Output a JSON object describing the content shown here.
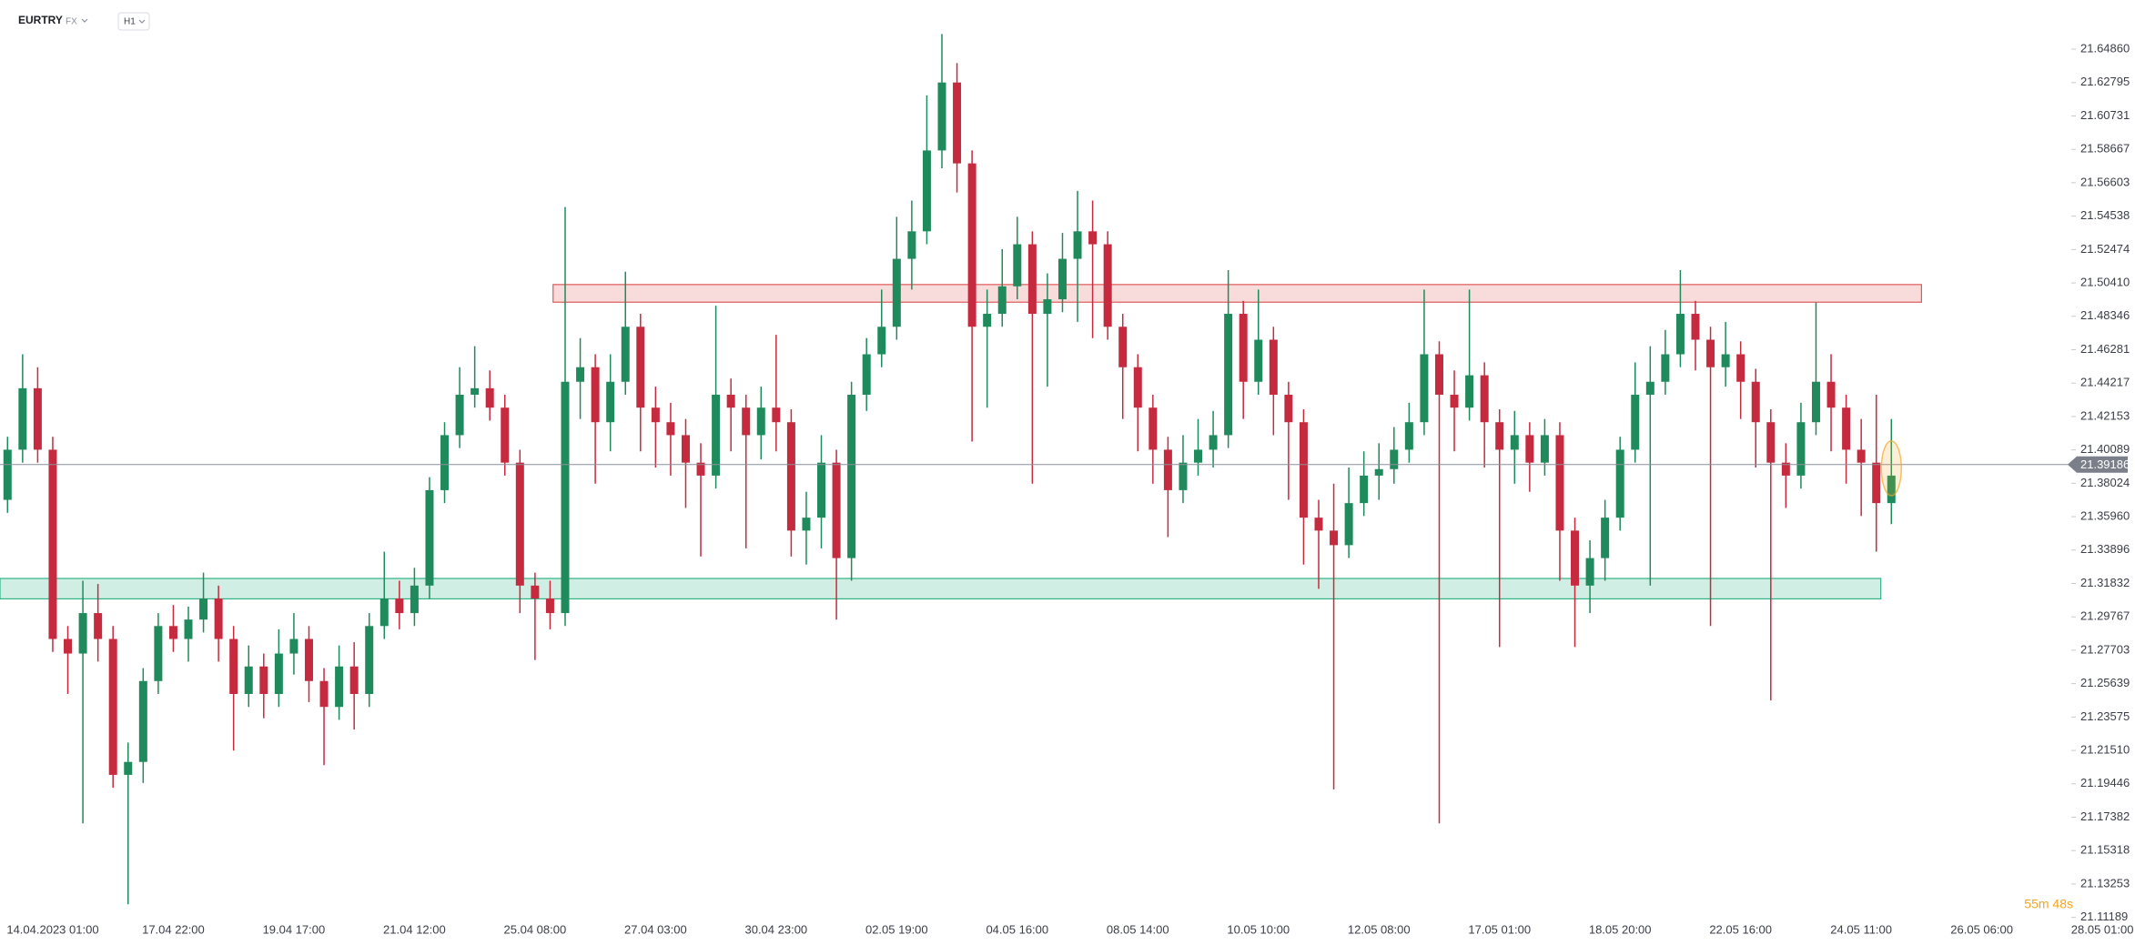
{
  "chart_data": {
    "type": "candlestick",
    "symbol": "EURTRY",
    "market": "FX",
    "timeframe": "H1",
    "countdown": "55m 48s",
    "up_color": "#1f8a5b",
    "down_color": "#c62a3f",
    "current_price": 21.39186,
    "categories": [
      null,
      null,
      null,
      "14.04.2023 01:00",
      null,
      null,
      null,
      null,
      null,
      null,
      null,
      "17.04 22:00",
      null,
      null,
      null,
      null,
      null,
      null,
      null,
      "19.04 17:00",
      null,
      null,
      null,
      null,
      null,
      null,
      null,
      "21.04 12:00",
      null,
      null,
      null,
      null,
      null,
      null,
      null,
      "25.04 08:00",
      null,
      null,
      null,
      null,
      null,
      null,
      null,
      "27.04 03:00",
      null,
      null,
      null,
      null,
      null,
      null,
      null,
      "30.04 23:00",
      null,
      null,
      null,
      null,
      null,
      null,
      null,
      "02.05 19:00",
      null,
      null,
      null,
      null,
      null,
      null,
      null,
      "04.05 16:00",
      null,
      null,
      null,
      null,
      null,
      null,
      null,
      "08.05 14:00",
      null,
      null,
      null,
      null,
      null,
      null,
      null,
      "10.05 10:00",
      null,
      null,
      null,
      null,
      null,
      null,
      null,
      "12.05 08:00",
      null,
      null,
      null,
      null,
      null,
      null,
      null,
      "17.05 01:00",
      null,
      null,
      null,
      null,
      null,
      null,
      null,
      "18.05 20:00",
      null,
      null,
      null,
      null,
      null,
      null,
      null,
      "22.05 16:00",
      null,
      null,
      null,
      null,
      null,
      null,
      null,
      "24.05 11:00",
      null,
      null,
      null,
      null,
      null,
      null,
      null,
      "26.05 06:00",
      null,
      null,
      null,
      null,
      null,
      null,
      null,
      "28.05 01:00"
    ],
    "open": [
      21.37,
      21.401,
      21.439,
      21.401,
      21.284,
      21.275,
      21.3,
      21.284,
      21.2,
      21.208,
      21.258,
      21.292,
      21.284,
      21.296,
      21.309,
      21.284,
      21.25,
      21.267,
      21.25,
      21.275,
      21.284,
      21.258,
      21.242,
      21.267,
      21.25,
      21.292,
      21.309,
      21.3,
      21.317,
      21.376,
      21.41,
      21.435,
      21.439,
      21.427,
      21.393,
      21.317,
      21.309,
      21.3,
      21.443,
      21.452,
      21.418,
      21.443,
      21.477,
      21.427,
      21.418,
      21.41,
      21.393,
      21.385,
      21.435,
      21.427,
      21.41,
      21.427,
      21.418,
      21.351,
      21.359,
      21.393,
      21.334,
      21.435,
      21.46,
      21.477,
      21.519,
      21.536,
      21.586,
      21.628,
      21.578,
      21.477,
      21.485,
      21.502,
      21.528,
      21.485,
      21.494,
      21.519,
      21.536,
      21.528,
      21.477,
      21.452,
      21.427,
      21.401,
      21.376,
      21.393,
      21.401,
      21.41,
      21.485,
      21.443,
      21.469,
      21.435,
      21.418,
      21.359,
      21.351,
      21.342,
      21.368,
      21.385,
      21.389,
      21.401,
      21.418,
      21.46,
      21.435,
      21.427,
      21.447,
      21.418,
      21.401,
      21.41,
      21.393,
      21.41,
      21.351,
      21.317,
      21.334,
      21.359,
      21.401,
      21.435,
      21.443,
      21.46,
      21.485,
      21.469,
      21.452,
      21.46,
      21.443,
      21.418,
      21.393,
      21.385,
      21.418,
      21.443,
      21.427,
      21.401,
      21.393,
      21.368,
      null,
      null,
      null,
      null,
      null,
      null,
      null,
      null,
      null,
      null,
      null,
      null,
      null,
      null
    ],
    "high": [
      21.409,
      21.46,
      21.452,
      21.409,
      21.292,
      21.32,
      21.318,
      21.292,
      21.22,
      21.266,
      21.3,
      21.305,
      21.304,
      21.325,
      21.317,
      21.292,
      21.28,
      21.275,
      21.29,
      21.3,
      21.292,
      21.266,
      21.28,
      21.282,
      21.3,
      21.338,
      21.32,
      21.328,
      21.384,
      21.418,
      21.452,
      21.465,
      21.45,
      21.435,
      21.401,
      21.325,
      21.32,
      21.551,
      21.47,
      21.46,
      21.46,
      21.511,
      21.485,
      21.44,
      21.43,
      21.42,
      21.405,
      21.49,
      21.445,
      21.435,
      21.44,
      21.472,
      21.426,
      21.375,
      21.41,
      21.401,
      21.443,
      21.47,
      21.5,
      21.545,
      21.555,
      21.62,
      21.658,
      21.64,
      21.586,
      21.5,
      21.525,
      21.545,
      21.536,
      21.51,
      21.535,
      21.561,
      21.555,
      21.536,
      21.485,
      21.46,
      21.435,
      21.409,
      21.41,
      21.42,
      21.425,
      21.512,
      21.493,
      21.5,
      21.477,
      21.443,
      21.426,
      21.37,
      21.38,
      21.39,
      21.4,
      21.405,
      21.415,
      21.43,
      21.5,
      21.468,
      21.45,
      21.5,
      21.455,
      21.426,
      21.425,
      21.418,
      21.42,
      21.418,
      21.359,
      21.345,
      21.37,
      21.409,
      21.455,
      21.465,
      21.475,
      21.512,
      21.493,
      21.477,
      21.48,
      21.468,
      21.451,
      21.426,
      21.405,
      21.43,
      21.492,
      21.46,
      21.435,
      21.42,
      21.435,
      21.42,
      null,
      null,
      null,
      null,
      null,
      null,
      null,
      null,
      null,
      null,
      null,
      null,
      null,
      null
    ],
    "low": [
      21.362,
      21.393,
      21.393,
      21.276,
      21.25,
      21.17,
      21.27,
      21.192,
      21.12,
      21.195,
      21.25,
      21.276,
      21.27,
      21.288,
      21.27,
      21.215,
      21.242,
      21.235,
      21.242,
      21.262,
      21.245,
      21.206,
      21.234,
      21.228,
      21.242,
      21.284,
      21.29,
      21.292,
      21.309,
      21.368,
      21.402,
      21.427,
      21.419,
      21.385,
      21.3,
      21.271,
      21.29,
      21.292,
      21.42,
      21.38,
      21.4,
      21.435,
      21.4,
      21.39,
      21.385,
      21.365,
      21.335,
      21.377,
      21.4,
      21.34,
      21.395,
      21.4,
      21.335,
      21.33,
      21.34,
      21.296,
      21.32,
      21.425,
      21.452,
      21.469,
      21.5,
      21.528,
      21.575,
      21.56,
      21.406,
      21.427,
      21.477,
      21.494,
      21.38,
      21.44,
      21.486,
      21.48,
      21.47,
      21.469,
      21.42,
      21.4,
      21.38,
      21.347,
      21.368,
      21.385,
      21.39,
      21.402,
      21.42,
      21.435,
      21.41,
      21.37,
      21.33,
      21.315,
      21.191,
      21.334,
      21.36,
      21.37,
      21.38,
      21.393,
      21.41,
      21.17,
      21.4,
      21.419,
      21.39,
      21.279,
      21.38,
      21.375,
      21.385,
      21.32,
      21.279,
      21.3,
      21.32,
      21.351,
      21.393,
      21.317,
      21.435,
      21.452,
      21.45,
      21.292,
      21.44,
      21.42,
      21.39,
      21.246,
      21.365,
      21.377,
      21.41,
      21.4,
      21.38,
      21.36,
      21.338,
      21.355,
      null,
      null,
      null,
      null,
      null,
      null,
      null,
      null,
      null,
      null,
      null,
      null,
      null,
      null
    ],
    "close": [
      21.401,
      21.439,
      21.401,
      21.284,
      21.275,
      21.3,
      21.284,
      21.2,
      21.208,
      21.258,
      21.292,
      21.284,
      21.296,
      21.309,
      21.284,
      21.25,
      21.267,
      21.25,
      21.275,
      21.284,
      21.258,
      21.242,
      21.267,
      21.25,
      21.292,
      21.309,
      21.3,
      21.317,
      21.376,
      21.41,
      21.435,
      21.439,
      21.427,
      21.393,
      21.317,
      21.309,
      21.3,
      21.443,
      21.452,
      21.418,
      21.443,
      21.477,
      21.427,
      21.418,
      21.41,
      21.393,
      21.385,
      21.435,
      21.427,
      21.41,
      21.427,
      21.418,
      21.351,
      21.359,
      21.393,
      21.334,
      21.435,
      21.46,
      21.477,
      21.519,
      21.536,
      21.586,
      21.628,
      21.578,
      21.477,
      21.485,
      21.502,
      21.528,
      21.485,
      21.494,
      21.519,
      21.536,
      21.528,
      21.477,
      21.452,
      21.427,
      21.401,
      21.376,
      21.393,
      21.401,
      21.41,
      21.485,
      21.443,
      21.469,
      21.435,
      21.418,
      21.359,
      21.351,
      21.342,
      21.368,
      21.385,
      21.389,
      21.401,
      21.418,
      21.46,
      21.435,
      21.427,
      21.447,
      21.418,
      21.401,
      21.41,
      21.393,
      21.41,
      21.351,
      21.317,
      21.334,
      21.359,
      21.401,
      21.435,
      21.443,
      21.46,
      21.485,
      21.469,
      21.452,
      21.46,
      21.443,
      21.418,
      21.393,
      21.385,
      21.418,
      21.443,
      21.427,
      21.401,
      21.393,
      21.368,
      21.385,
      null,
      null,
      null,
      null,
      null,
      null,
      null,
      null,
      null,
      null,
      null,
      null,
      null,
      null
    ],
    "zones": [
      {
        "low": 21.4922,
        "high": 21.5031,
        "x_start": 36.7,
        "x_end": 127.5,
        "color": "#e05a5a"
      },
      {
        "low": 21.3088,
        "high": 21.3214,
        "x_start": 0,
        "x_end": 124.8,
        "color": "#2fb383"
      }
    ],
    "ylim": [
      21.11,
      21.679
    ],
    "yticks": [
      {
        "value": 21.6486,
        "label": "21.64860"
      },
      21.62795,
      21.60731,
      21.58667,
      21.56603,
      21.54538,
      21.52474,
      {
        "value": 21.5041,
        "label": "21.50410"
      },
      21.48346,
      21.46281,
      21.44217,
      21.42153,
      21.40089,
      21.38024,
      {
        "value": 21.3596,
        "label": "21.35960"
      },
      21.33896,
      21.31832,
      21.29767,
      21.27703,
      21.25639,
      21.23575,
      {
        "value": 21.2151,
        "label": "21.21510"
      },
      21.19446,
      21.17382,
      21.15318,
      21.13253,
      21.11189
    ]
  }
}
